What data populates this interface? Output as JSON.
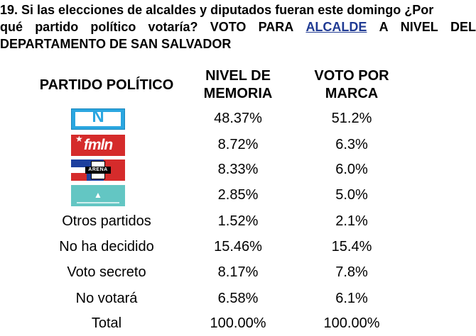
{
  "question": {
    "line1": "19. Si las elecciones de alcaldes y diputados fueran este domingo ¿Por",
    "line2_words": [
      "qué",
      "partido",
      "político",
      "votaría?",
      "VOTO",
      "PARA",
      "ALCALDE",
      "A",
      "NIVEL",
      "DEL"
    ],
    "line3": "DEPARTAMENTO DE SAN SALVADOR"
  },
  "headers": {
    "partido": "PARTIDO POLÍTICO",
    "memoria_l1": "NIVEL DE",
    "memoria_l2": "MEMORIA",
    "marca_l1": "VOTO POR",
    "marca_l2": "MARCA"
  },
  "logos": {
    "nuevas_ideas": "N",
    "fmln": "fmln",
    "arena": "ARENA"
  },
  "rows": [
    {
      "partido": "",
      "memoria": "48.37%",
      "marca": "51.2%"
    },
    {
      "partido": "",
      "memoria": "8.72%",
      "marca": "6.3%"
    },
    {
      "partido": "",
      "memoria": "8.33%",
      "marca": "6.0%"
    },
    {
      "partido": "",
      "memoria": "2.85%",
      "marca": "5.0%"
    },
    {
      "partido": "Otros partidos",
      "memoria": "1.52%",
      "marca": "2.1%"
    },
    {
      "partido": "No ha decidido",
      "memoria": "15.46%",
      "marca": "15.4%"
    },
    {
      "partido": "Voto secreto",
      "memoria": "8.17%",
      "marca": "7.8%"
    },
    {
      "partido": "No votará",
      "memoria": "6.58%",
      "marca": "6.1%"
    },
    {
      "partido": "Total",
      "memoria": "100.00%",
      "marca": "100.00%"
    }
  ],
  "colors": {
    "accent_link": "#1f3a93",
    "nuevas_ideas": "#2aa6e0",
    "fmln": "#d52b2b",
    "arena_blue": "#1d3f9e",
    "vamos": "#63c6c3"
  }
}
